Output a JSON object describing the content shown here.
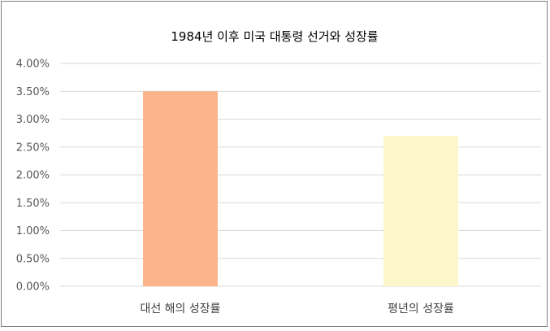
{
  "chart_data": {
    "type": "bar",
    "title": "1984년 이후 미국 대통령 선거와 성장률",
    "xlabel": "",
    "ylabel": "",
    "categories": [
      "대선 해의 성장률",
      "평년의 성장률"
    ],
    "values": [
      3.5,
      2.7
    ],
    "ylim": [
      0,
      4
    ],
    "y_ticks": [
      "0.00%",
      "0.50%",
      "1.00%",
      "1.50%",
      "2.00%",
      "2.50%",
      "3.00%",
      "3.50%",
      "4.00%"
    ],
    "y_tick_values": [
      0,
      0.5,
      1,
      1.5,
      2,
      2.5,
      3,
      3.5,
      4
    ],
    "bar_colors": [
      "#fcb58a",
      "#fdf5cc"
    ],
    "gridline_color": "#d9d9d9",
    "grid": true,
    "legend": "none"
  }
}
